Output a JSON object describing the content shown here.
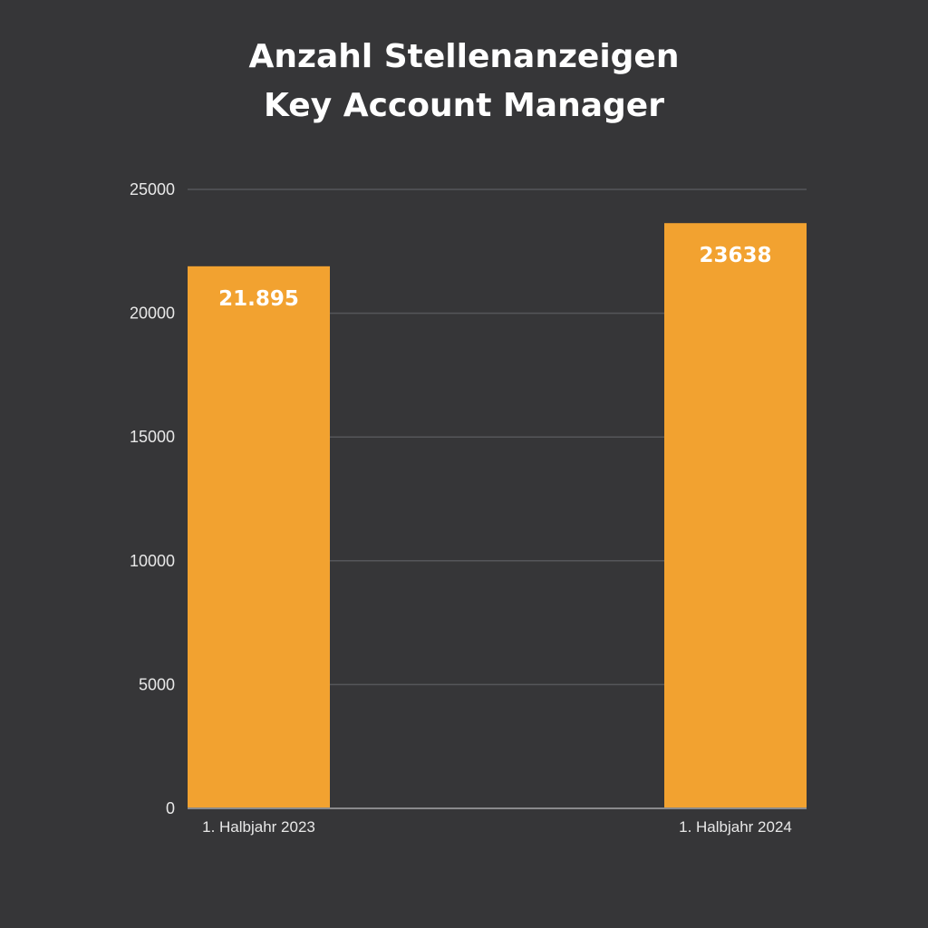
{
  "chart_data": {
    "type": "bar",
    "title": [
      "Anzahl Stellenanzeigen",
      "Key Account Manager"
    ],
    "xlabel": "",
    "ylabel": "",
    "categories": [
      "1. Halbjahr 2023",
      "1. Halbjahr 2024"
    ],
    "values": [
      21895,
      23638
    ],
    "data_labels": [
      "21.895",
      "23638"
    ],
    "yticks": [
      0,
      5000,
      10000,
      15000,
      20000,
      25000
    ],
    "ylim": [
      0,
      25000
    ],
    "grid": true,
    "legend": "none"
  },
  "colors": {
    "background": "#363638",
    "bar": "#f2a230",
    "gridline": "#55565a",
    "axis": "#8a8a8c",
    "text": "#ffffff"
  }
}
